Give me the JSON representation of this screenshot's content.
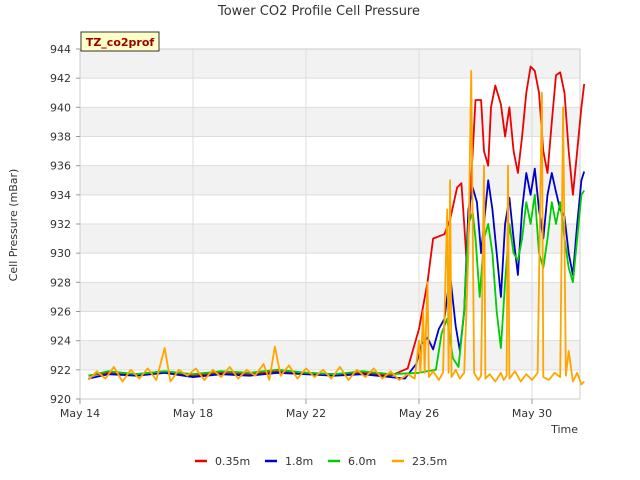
{
  "chart_data": {
    "type": "line",
    "title": "Tower CO2 Profile Cell Pressure",
    "badge": "TZ_co2prof",
    "xlabel": "Time",
    "ylabel": "Cell Pressure (mBar)",
    "xlim": [
      14,
      31.7
    ],
    "ylim": [
      920,
      944
    ],
    "x_ticks": [
      {
        "value": 14,
        "label": "May 14"
      },
      {
        "value": 18,
        "label": "May 18"
      },
      {
        "value": 22,
        "label": "May 22"
      },
      {
        "value": 26,
        "label": "May 26"
      },
      {
        "value": 30,
        "label": "May 30"
      }
    ],
    "y_ticks": [
      920,
      922,
      924,
      926,
      928,
      930,
      932,
      934,
      936,
      938,
      940,
      942,
      944
    ],
    "legend_position": "bottom",
    "series": [
      {
        "name": "0.35m",
        "color": "#ee0000",
        "points": [
          [
            14.3,
            921.6
          ],
          [
            15,
            921.8
          ],
          [
            16,
            921.7
          ],
          [
            17,
            921.9
          ],
          [
            18,
            921.6
          ],
          [
            19,
            921.8
          ],
          [
            20,
            921.7
          ],
          [
            21,
            921.9
          ],
          [
            22,
            921.8
          ],
          [
            23,
            921.7
          ],
          [
            24,
            921.8
          ],
          [
            25,
            921.6
          ],
          [
            25.6,
            922.1
          ],
          [
            26.0,
            924.8
          ],
          [
            26.3,
            928.0
          ],
          [
            26.5,
            931.0
          ],
          [
            26.9,
            931.3
          ],
          [
            27.1,
            932.3
          ],
          [
            27.35,
            934.5
          ],
          [
            27.5,
            934.8
          ],
          [
            27.6,
            932.0
          ],
          [
            27.7,
            929.0
          ],
          [
            27.85,
            935.0
          ],
          [
            28.0,
            940.5
          ],
          [
            28.2,
            940.5
          ],
          [
            28.3,
            937.0
          ],
          [
            28.45,
            936.0
          ],
          [
            28.55,
            940.0
          ],
          [
            28.7,
            941.5
          ],
          [
            28.9,
            940.2
          ],
          [
            29.05,
            938.0
          ],
          [
            29.2,
            940.0
          ],
          [
            29.35,
            937.0
          ],
          [
            29.5,
            935.5
          ],
          [
            29.65,
            938.0
          ],
          [
            29.8,
            941.0
          ],
          [
            29.95,
            942.8
          ],
          [
            30.1,
            942.5
          ],
          [
            30.25,
            941.0
          ],
          [
            30.4,
            937.0
          ],
          [
            30.55,
            935.5
          ],
          [
            30.7,
            939.0
          ],
          [
            30.85,
            942.2
          ],
          [
            31.0,
            942.4
          ],
          [
            31.15,
            941.0
          ],
          [
            31.3,
            937.0
          ],
          [
            31.45,
            934.0
          ],
          [
            31.6,
            937.0
          ],
          [
            31.75,
            940.0
          ],
          [
            31.85,
            941.6
          ]
        ]
      },
      {
        "name": "1.8m",
        "color": "#0000cc",
        "points": [
          [
            14.3,
            921.4
          ],
          [
            15,
            921.7
          ],
          [
            16,
            921.6
          ],
          [
            17,
            921.8
          ],
          [
            18,
            921.5
          ],
          [
            19,
            921.7
          ],
          [
            20,
            921.6
          ],
          [
            21,
            921.8
          ],
          [
            22,
            921.7
          ],
          [
            23,
            921.6
          ],
          [
            24,
            921.7
          ],
          [
            25,
            921.5
          ],
          [
            25.5,
            921.4
          ],
          [
            25.9,
            922.4
          ],
          [
            26.1,
            923.8
          ],
          [
            26.3,
            924.2
          ],
          [
            26.5,
            923.4
          ],
          [
            26.7,
            924.8
          ],
          [
            26.9,
            925.5
          ],
          [
            27.1,
            928.5
          ],
          [
            27.3,
            925.0
          ],
          [
            27.45,
            923.3
          ],
          [
            27.6,
            926.0
          ],
          [
            27.75,
            933.0
          ],
          [
            27.9,
            934.5
          ],
          [
            28.05,
            933.5
          ],
          [
            28.2,
            930.0
          ],
          [
            28.35,
            933.0
          ],
          [
            28.45,
            935.0
          ],
          [
            28.6,
            933.0
          ],
          [
            28.75,
            930.0
          ],
          [
            28.9,
            927.0
          ],
          [
            29.05,
            932.0
          ],
          [
            29.2,
            933.8
          ],
          [
            29.35,
            931.0
          ],
          [
            29.5,
            928.5
          ],
          [
            29.65,
            933.0
          ],
          [
            29.8,
            935.5
          ],
          [
            29.95,
            934.0
          ],
          [
            30.1,
            935.8
          ],
          [
            30.25,
            933.0
          ],
          [
            30.4,
            931.0
          ],
          [
            30.55,
            934.0
          ],
          [
            30.7,
            935.5
          ],
          [
            30.85,
            934.2
          ],
          [
            31.0,
            933.0
          ],
          [
            31.15,
            932.5
          ],
          [
            31.3,
            930.0
          ],
          [
            31.45,
            928.5
          ],
          [
            31.6,
            932.0
          ],
          [
            31.75,
            935.0
          ],
          [
            31.85,
            935.6
          ]
        ]
      },
      {
        "name": "6.0m",
        "color": "#00cc00",
        "points": [
          [
            14.3,
            921.6
          ],
          [
            15,
            921.9
          ],
          [
            16,
            921.7
          ],
          [
            17,
            921.9
          ],
          [
            18,
            921.7
          ],
          [
            19,
            921.9
          ],
          [
            20,
            921.8
          ],
          [
            21,
            922.0
          ],
          [
            22,
            921.8
          ],
          [
            23,
            921.7
          ],
          [
            24,
            921.9
          ],
          [
            25,
            921.7
          ],
          [
            26,
            921.8
          ],
          [
            26.6,
            922.0
          ],
          [
            26.8,
            924.5
          ],
          [
            27.0,
            925.5
          ],
          [
            27.2,
            922.8
          ],
          [
            27.4,
            922.2
          ],
          [
            27.6,
            926.0
          ],
          [
            27.75,
            932.0
          ],
          [
            27.9,
            932.8
          ],
          [
            28.0,
            931.0
          ],
          [
            28.15,
            927.0
          ],
          [
            28.3,
            931.0
          ],
          [
            28.45,
            932.0
          ],
          [
            28.6,
            930.0
          ],
          [
            28.75,
            926.0
          ],
          [
            28.9,
            923.5
          ],
          [
            29.05,
            928.0
          ],
          [
            29.2,
            932.0
          ],
          [
            29.35,
            930.0
          ],
          [
            29.5,
            929.5
          ],
          [
            29.65,
            931.0
          ],
          [
            29.8,
            933.5
          ],
          [
            29.95,
            932.0
          ],
          [
            30.1,
            934.0
          ],
          [
            30.25,
            930.0
          ],
          [
            30.4,
            929.0
          ],
          [
            30.55,
            931.0
          ],
          [
            30.7,
            933.5
          ],
          [
            30.85,
            932.0
          ],
          [
            31.0,
            933.5
          ],
          [
            31.15,
            931.0
          ],
          [
            31.3,
            929.0
          ],
          [
            31.45,
            928.0
          ],
          [
            31.6,
            931.0
          ],
          [
            31.75,
            934.0
          ],
          [
            31.85,
            934.3
          ]
        ]
      },
      {
        "name": "23.5m",
        "color": "#ffa500",
        "points": [
          [
            14.3,
            921.3
          ],
          [
            14.6,
            921.9
          ],
          [
            14.9,
            921.4
          ],
          [
            15.2,
            922.2
          ],
          [
            15.5,
            921.2
          ],
          [
            15.8,
            922.0
          ],
          [
            16.1,
            921.4
          ],
          [
            16.4,
            922.1
          ],
          [
            16.7,
            921.3
          ],
          [
            17.0,
            923.5
          ],
          [
            17.2,
            921.2
          ],
          [
            17.5,
            922.0
          ],
          [
            17.8,
            921.6
          ],
          [
            18.1,
            922.1
          ],
          [
            18.4,
            921.3
          ],
          [
            18.7,
            922.0
          ],
          [
            19.0,
            921.5
          ],
          [
            19.3,
            922.2
          ],
          [
            19.6,
            921.4
          ],
          [
            19.9,
            922.0
          ],
          [
            20.2,
            921.6
          ],
          [
            20.5,
            922.4
          ],
          [
            20.7,
            921.3
          ],
          [
            20.9,
            923.6
          ],
          [
            21.1,
            921.6
          ],
          [
            21.4,
            922.3
          ],
          [
            21.7,
            921.4
          ],
          [
            22.0,
            922.1
          ],
          [
            22.3,
            921.5
          ],
          [
            22.6,
            922.0
          ],
          [
            22.9,
            921.4
          ],
          [
            23.2,
            922.2
          ],
          [
            23.5,
            921.3
          ],
          [
            23.8,
            922.0
          ],
          [
            24.1,
            921.5
          ],
          [
            24.4,
            922.1
          ],
          [
            24.7,
            921.4
          ],
          [
            25.0,
            921.9
          ],
          [
            25.3,
            921.3
          ],
          [
            25.6,
            921.7
          ],
          [
            25.85,
            921.4
          ],
          [
            26.0,
            924.0
          ],
          [
            26.05,
            921.8
          ],
          [
            26.15,
            926.0
          ],
          [
            26.2,
            921.8
          ],
          [
            26.3,
            928.0
          ],
          [
            26.35,
            921.5
          ],
          [
            26.5,
            921.9
          ],
          [
            26.7,
            921.3
          ],
          [
            26.85,
            921.8
          ],
          [
            27.0,
            933.0
          ],
          [
            27.05,
            921.8
          ],
          [
            27.1,
            935.0
          ],
          [
            27.15,
            921.5
          ],
          [
            27.3,
            922.0
          ],
          [
            27.45,
            921.4
          ],
          [
            27.6,
            921.8
          ],
          [
            27.75,
            930.0
          ],
          [
            27.85,
            942.5
          ],
          [
            27.95,
            921.8
          ],
          [
            28.1,
            921.3
          ],
          [
            28.2,
            921.6
          ],
          [
            28.3,
            936.0
          ],
          [
            28.35,
            921.4
          ],
          [
            28.5,
            921.7
          ],
          [
            28.7,
            921.2
          ],
          [
            28.9,
            921.8
          ],
          [
            29.0,
            921.3
          ],
          [
            29.1,
            921.6
          ],
          [
            29.15,
            936.0
          ],
          [
            29.2,
            921.4
          ],
          [
            29.4,
            921.9
          ],
          [
            29.6,
            921.2
          ],
          [
            29.8,
            921.7
          ],
          [
            30.0,
            921.3
          ],
          [
            30.2,
            921.8
          ],
          [
            30.35,
            941.0
          ],
          [
            30.4,
            921.5
          ],
          [
            30.6,
            921.3
          ],
          [
            30.8,
            921.8
          ],
          [
            31.0,
            921.5
          ],
          [
            31.1,
            940.0
          ],
          [
            31.2,
            921.6
          ],
          [
            31.3,
            923.3
          ],
          [
            31.45,
            921.2
          ],
          [
            31.6,
            921.8
          ],
          [
            31.75,
            921.0
          ],
          [
            31.85,
            921.2
          ]
        ]
      }
    ]
  }
}
